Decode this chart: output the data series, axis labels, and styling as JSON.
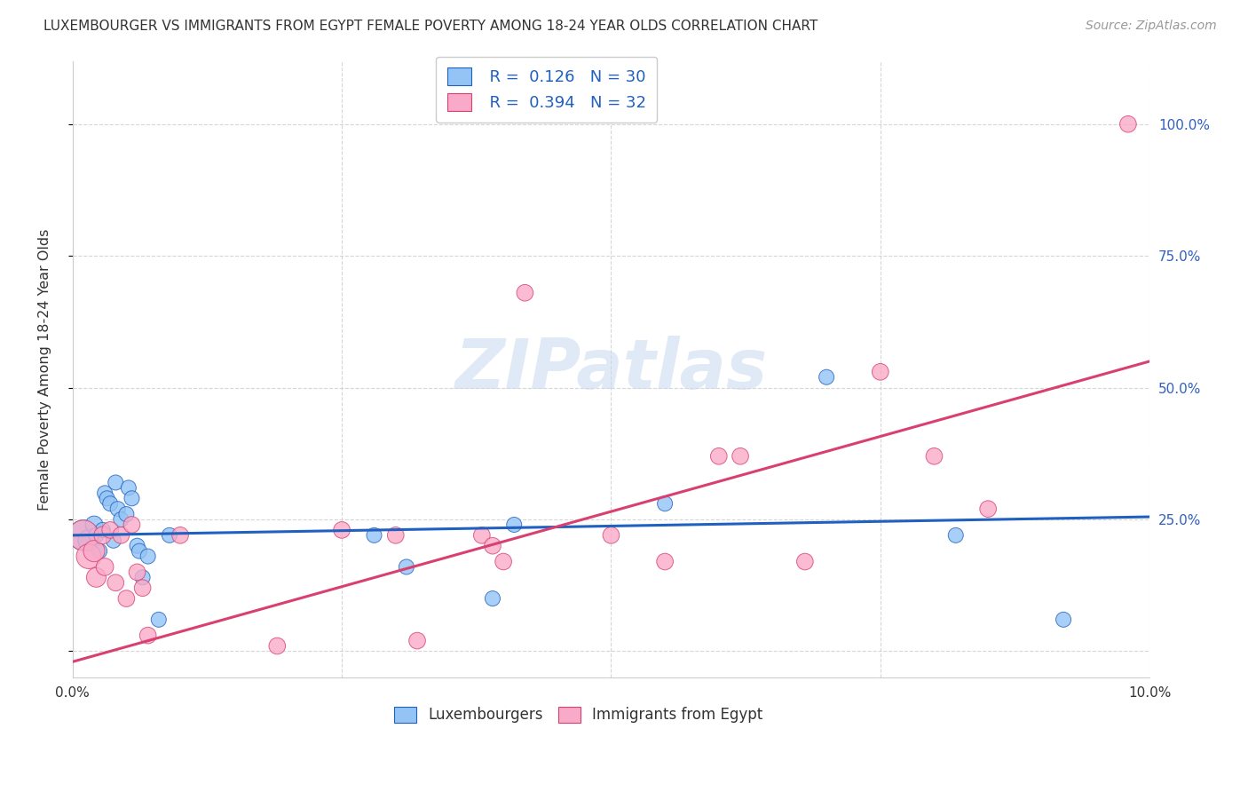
{
  "title": "LUXEMBOURGER VS IMMIGRANTS FROM EGYPT FEMALE POVERTY AMONG 18-24 YEAR OLDS CORRELATION CHART",
  "source": "Source: ZipAtlas.com",
  "ylabel": "Female Poverty Among 18-24 Year Olds",
  "xlim": [
    0.0,
    10.0
  ],
  "ylim": [
    -5.0,
    112.0
  ],
  "lux_R": 0.126,
  "lux_N": 30,
  "egypt_R": 0.394,
  "egypt_N": 32,
  "lux_color": "#93c4f5",
  "egypt_color": "#f9aac8",
  "lux_line_color": "#2060c0",
  "egypt_line_color": "#d94070",
  "watermark": "ZIPatlas",
  "lux_x": [
    0.1,
    0.15,
    0.2,
    0.22,
    0.25,
    0.28,
    0.3,
    0.32,
    0.35,
    0.38,
    0.4,
    0.42,
    0.45,
    0.5,
    0.52,
    0.55,
    0.6,
    0.62,
    0.65,
    0.7,
    0.8,
    0.9,
    2.8,
    3.1,
    3.9,
    4.1,
    5.5,
    7.0,
    8.2,
    9.2
  ],
  "lux_y": [
    22.0,
    21.0,
    24.0,
    22.0,
    19.0,
    23.0,
    30.0,
    29.0,
    28.0,
    21.0,
    32.0,
    27.0,
    25.0,
    26.0,
    31.0,
    29.0,
    20.0,
    19.0,
    14.0,
    18.0,
    6.0,
    22.0,
    22.0,
    16.0,
    10.0,
    24.0,
    28.0,
    52.0,
    22.0,
    6.0
  ],
  "egypt_x": [
    0.1,
    0.15,
    0.2,
    0.22,
    0.28,
    0.3,
    0.35,
    0.4,
    0.45,
    0.5,
    0.55,
    0.6,
    0.65,
    0.7,
    1.0,
    1.9,
    2.5,
    3.0,
    3.2,
    3.8,
    3.9,
    4.0,
    4.2,
    5.0,
    5.5,
    6.0,
    6.2,
    6.8,
    7.5,
    8.0,
    8.5,
    9.8
  ],
  "egypt_y": [
    22.0,
    18.0,
    19.0,
    14.0,
    22.0,
    16.0,
    23.0,
    13.0,
    22.0,
    10.0,
    24.0,
    15.0,
    12.0,
    3.0,
    22.0,
    1.0,
    23.0,
    22.0,
    2.0,
    22.0,
    20.0,
    17.0,
    68.0,
    22.0,
    17.0,
    37.0,
    37.0,
    17.0,
    53.0,
    37.0,
    27.0,
    100.0
  ],
  "lux_sizes": [
    600,
    300,
    200,
    150,
    150,
    150,
    150,
    150,
    150,
    150,
    150,
    150,
    150,
    150,
    150,
    150,
    150,
    150,
    150,
    150,
    150,
    150,
    150,
    150,
    150,
    150,
    150,
    150,
    150,
    150
  ],
  "egypt_sizes": [
    600,
    400,
    300,
    250,
    200,
    200,
    180,
    180,
    180,
    180,
    180,
    180,
    180,
    180,
    180,
    180,
    180,
    180,
    180,
    180,
    180,
    180,
    180,
    180,
    180,
    180,
    180,
    180,
    180,
    180,
    180,
    180
  ],
  "lux_trend_x": [
    0.0,
    10.0
  ],
  "lux_trend_y": [
    22.0,
    25.5
  ],
  "egypt_trend_x": [
    0.0,
    10.0
  ],
  "egypt_trend_y": [
    -2.0,
    55.0
  ]
}
